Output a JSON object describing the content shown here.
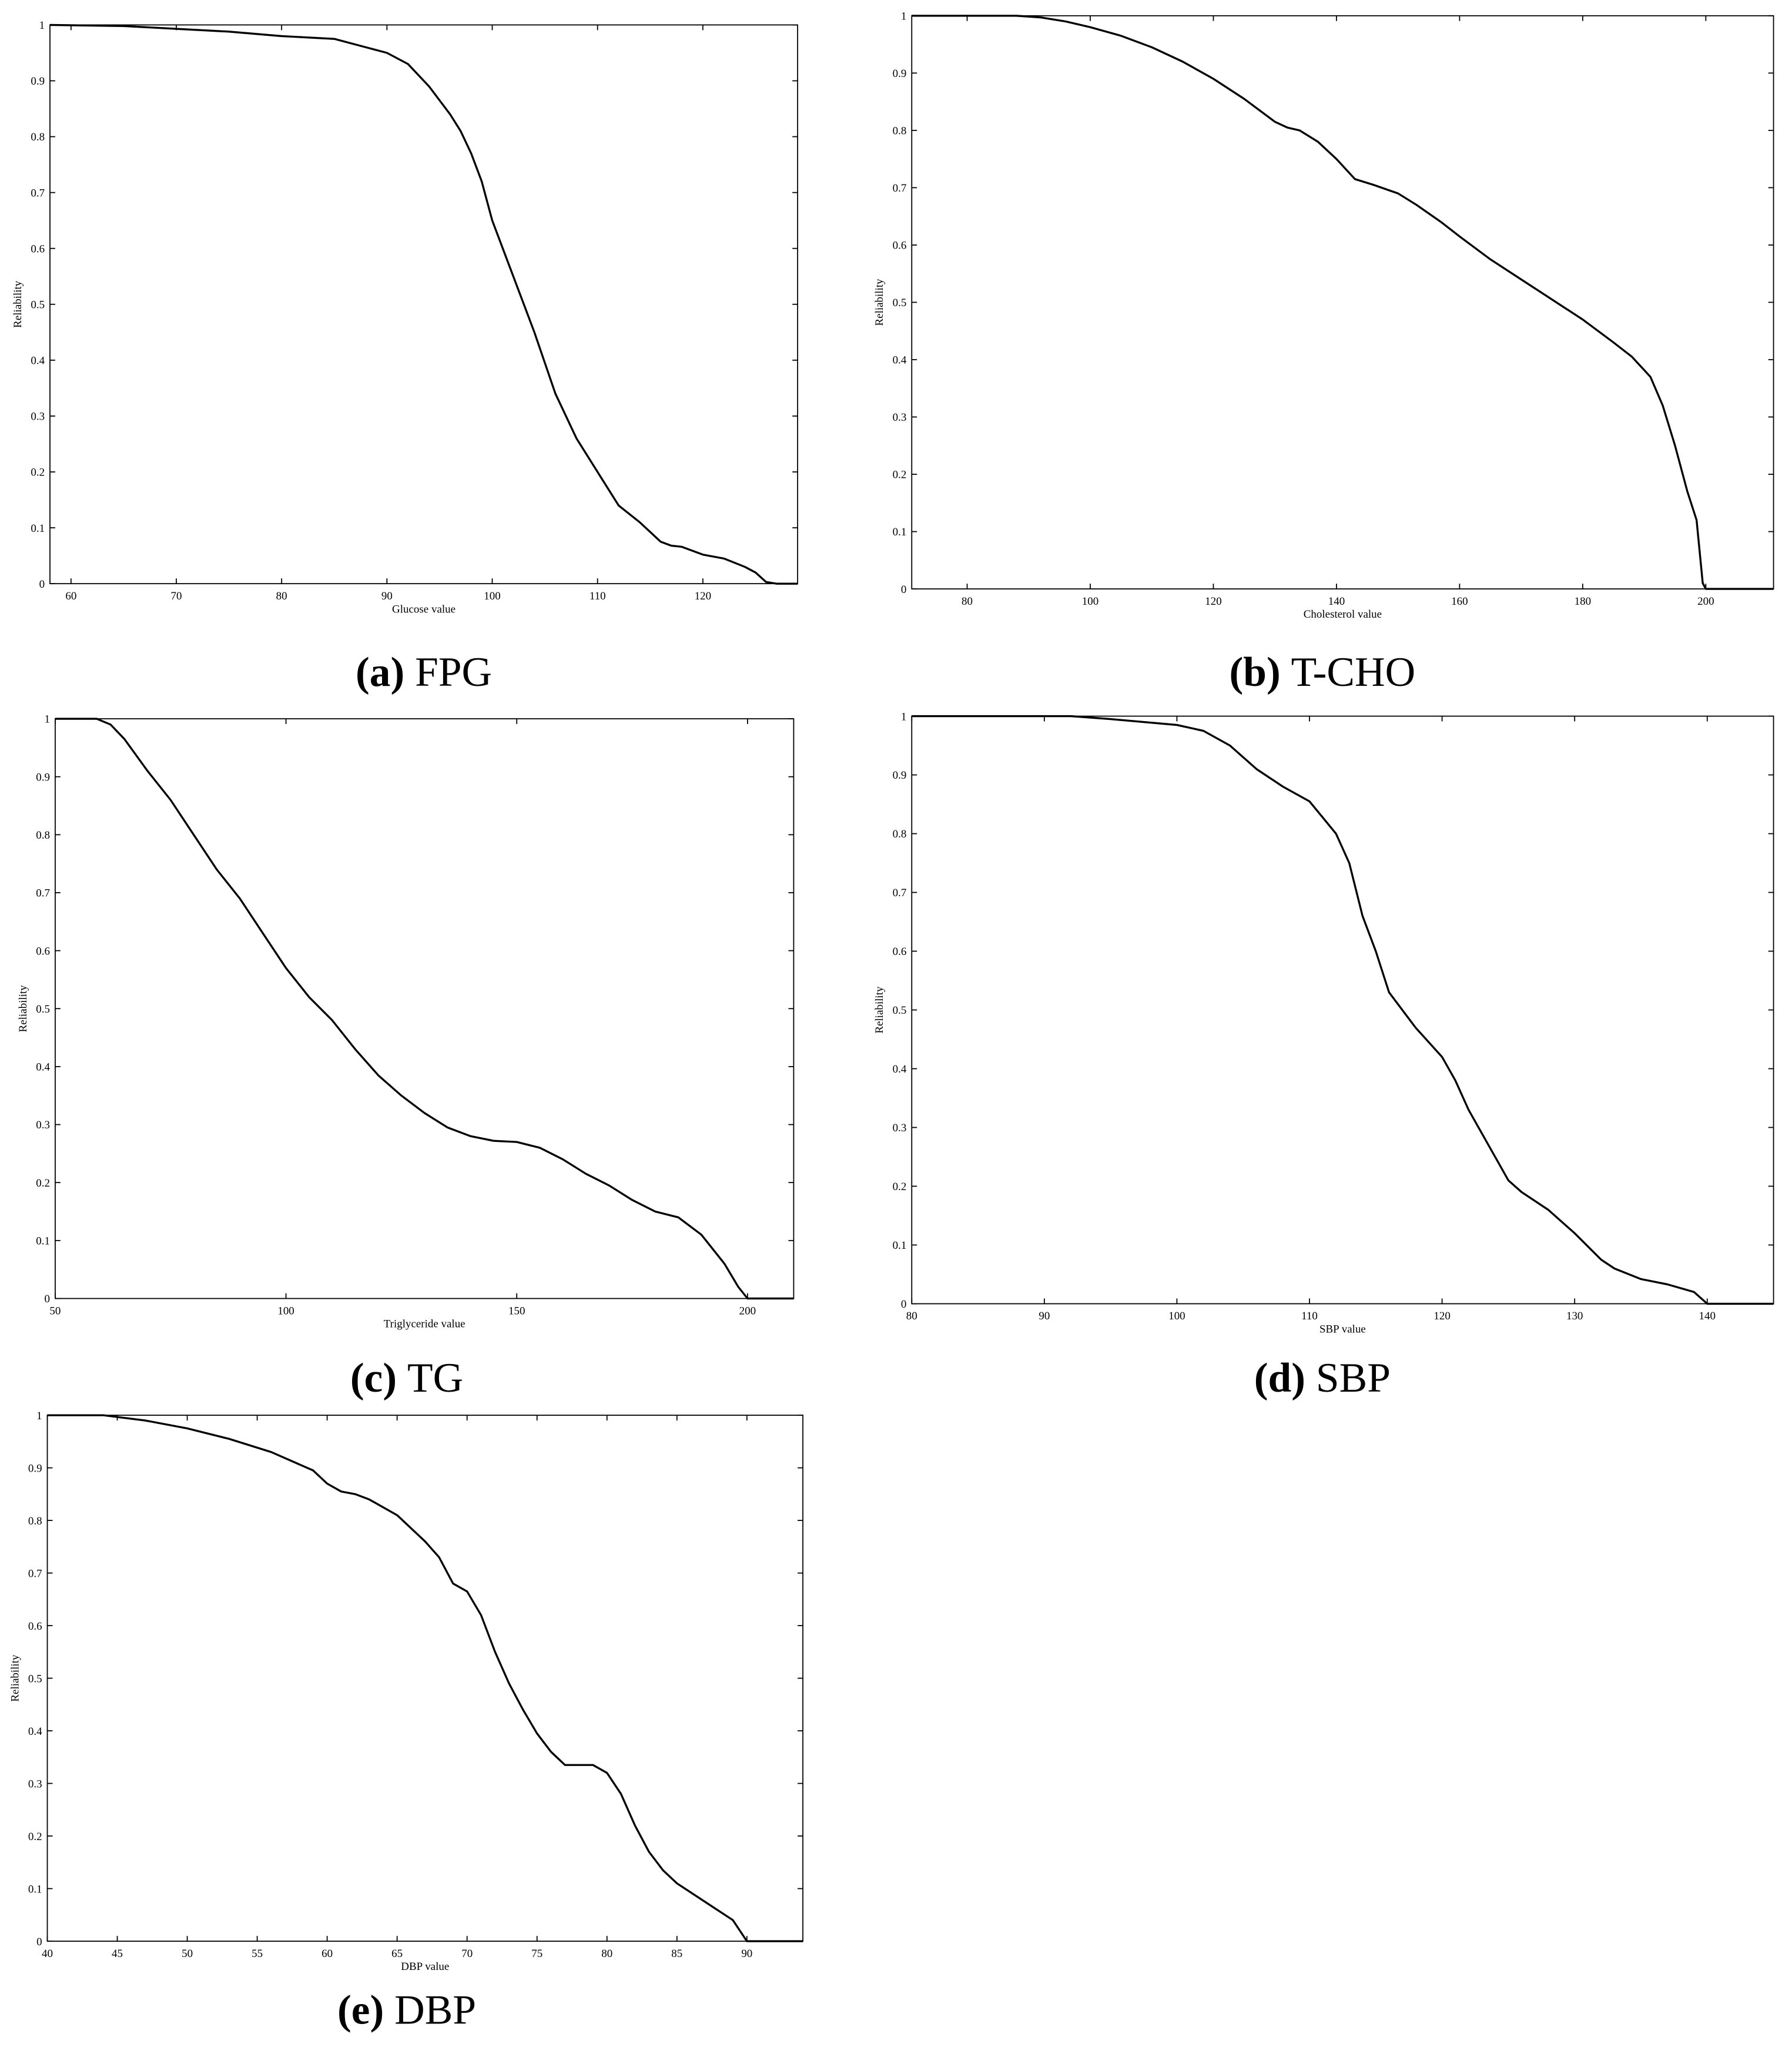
{
  "chart_data": [
    {
      "type": "line",
      "label": "(a)",
      "caption": "FPG",
      "xlabel": "Glucose value",
      "ylabel": "Reliability",
      "color": "#000000",
      "xlim": [
        58,
        129
      ],
      "xticks": [
        60,
        70,
        80,
        90,
        100,
        110,
        120
      ],
      "ylim": [
        0,
        1
      ],
      "yticks": [
        0,
        0.1,
        0.2,
        0.3,
        0.4,
        0.5,
        0.6,
        0.7,
        0.8,
        0.9,
        1
      ],
      "x": [
        58,
        65,
        70,
        75,
        80,
        85,
        88,
        90,
        92,
        94,
        96,
        97,
        98,
        99,
        100,
        102,
        104,
        106,
        108,
        110,
        112,
        114,
        116,
        117,
        118,
        120,
        122,
        124,
        125,
        126,
        127,
        129
      ],
      "values": [
        1,
        0.998,
        0.993,
        0.988,
        0.98,
        0.975,
        0.96,
        0.95,
        0.93,
        0.89,
        0.84,
        0.81,
        0.77,
        0.72,
        0.65,
        0.55,
        0.45,
        0.34,
        0.26,
        0.2,
        0.14,
        0.11,
        0.075,
        0.068,
        0.066,
        0.052,
        0.045,
        0.03,
        0.02,
        0.003,
        0,
        0
      ]
    },
    {
      "type": "line",
      "label": "(b)",
      "caption": "T-CHO",
      "xlabel": "Cholesterol value",
      "ylabel": "Reliability",
      "color": "#000000",
      "xlim": [
        71,
        211
      ],
      "xticks": [
        80,
        100,
        120,
        140,
        160,
        180,
        200
      ],
      "ylim": [
        0,
        1
      ],
      "yticks": [
        0,
        0.1,
        0.2,
        0.3,
        0.4,
        0.5,
        0.6,
        0.7,
        0.8,
        0.9,
        1
      ],
      "x": [
        71,
        88,
        92,
        96,
        100,
        105,
        110,
        115,
        120,
        125,
        130,
        132,
        134,
        137,
        140,
        143,
        146,
        150,
        153,
        157,
        160,
        165,
        170,
        175,
        180,
        185,
        188,
        191,
        193,
        195,
        197,
        198.5,
        199.5,
        200,
        211
      ],
      "values": [
        1,
        1,
        0.997,
        0.99,
        0.98,
        0.965,
        0.945,
        0.92,
        0.89,
        0.855,
        0.815,
        0.805,
        0.8,
        0.78,
        0.75,
        0.715,
        0.705,
        0.69,
        0.67,
        0.64,
        0.615,
        0.575,
        0.54,
        0.505,
        0.47,
        0.43,
        0.405,
        0.37,
        0.32,
        0.25,
        0.17,
        0.12,
        0.01,
        0,
        0
      ]
    },
    {
      "type": "line",
      "label": "(c)",
      "caption": "TG",
      "xlabel": "Triglyceride value",
      "ylabel": "Reliability",
      "color": "#000000",
      "xlim": [
        50,
        210
      ],
      "xticks": [
        50,
        100,
        150,
        200
      ],
      "ylim": [
        0,
        1
      ],
      "yticks": [
        0,
        0.1,
        0.2,
        0.3,
        0.4,
        0.5,
        0.6,
        0.7,
        0.8,
        0.9,
        1
      ],
      "x": [
        50,
        59,
        62,
        65,
        70,
        75,
        80,
        85,
        90,
        95,
        100,
        105,
        110,
        115,
        120,
        125,
        130,
        135,
        140,
        145,
        150,
        155,
        160,
        165,
        170,
        175,
        180,
        185,
        190,
        195,
        198,
        200,
        210
      ],
      "values": [
        1,
        1,
        0.99,
        0.965,
        0.91,
        0.86,
        0.8,
        0.74,
        0.69,
        0.63,
        0.57,
        0.52,
        0.48,
        0.43,
        0.385,
        0.35,
        0.32,
        0.295,
        0.28,
        0.272,
        0.27,
        0.26,
        0.24,
        0.215,
        0.195,
        0.17,
        0.15,
        0.14,
        0.11,
        0.06,
        0.02,
        0,
        0
      ]
    },
    {
      "type": "line",
      "label": "(d)",
      "caption": "SBP",
      "xlabel": "SBP value",
      "ylabel": "Reliability",
      "color": "#000000",
      "xlim": [
        80,
        145
      ],
      "xticks": [
        80,
        90,
        100,
        110,
        120,
        130,
        140
      ],
      "ylim": [
        0,
        1
      ],
      "yticks": [
        0,
        0.1,
        0.2,
        0.3,
        0.4,
        0.5,
        0.6,
        0.7,
        0.8,
        0.9,
        1
      ],
      "x": [
        80,
        92,
        95,
        100,
        102,
        104,
        106,
        108,
        110,
        112,
        113,
        114,
        115,
        116,
        117,
        118,
        120,
        121,
        122,
        124,
        125,
        126,
        128,
        130,
        132,
        133,
        135,
        137,
        139,
        140,
        145
      ],
      "values": [
        1,
        1,
        0.995,
        0.985,
        0.975,
        0.95,
        0.91,
        0.88,
        0.855,
        0.8,
        0.75,
        0.66,
        0.6,
        0.53,
        0.5,
        0.47,
        0.42,
        0.38,
        0.33,
        0.25,
        0.21,
        0.19,
        0.16,
        0.12,
        0.075,
        0.06,
        0.042,
        0.033,
        0.02,
        0,
        0
      ]
    },
    {
      "type": "line",
      "label": "(e)",
      "caption": "DBP",
      "xlabel": "DBP value",
      "ylabel": "Reliability",
      "color": "#000000",
      "xlim": [
        40,
        94
      ],
      "xticks": [
        40,
        45,
        50,
        55,
        60,
        65,
        70,
        75,
        80,
        85,
        90
      ],
      "ylim": [
        0,
        1
      ],
      "yticks": [
        0,
        0.1,
        0.2,
        0.3,
        0.4,
        0.5,
        0.6,
        0.7,
        0.8,
        0.9,
        1
      ],
      "x": [
        40,
        44,
        47,
        50,
        53,
        56,
        59,
        60,
        61,
        62,
        63,
        65,
        67,
        68,
        69,
        70,
        71,
        72,
        73,
        74,
        75,
        76,
        77,
        79,
        80,
        81,
        82,
        83,
        84,
        85,
        87,
        89,
        90,
        94
      ],
      "values": [
        1,
        1,
        0.99,
        0.975,
        0.955,
        0.93,
        0.895,
        0.87,
        0.855,
        0.85,
        0.84,
        0.81,
        0.76,
        0.73,
        0.68,
        0.665,
        0.62,
        0.55,
        0.49,
        0.44,
        0.395,
        0.36,
        0.335,
        0.335,
        0.32,
        0.28,
        0.22,
        0.17,
        0.135,
        0.11,
        0.075,
        0.04,
        0,
        0
      ]
    }
  ]
}
